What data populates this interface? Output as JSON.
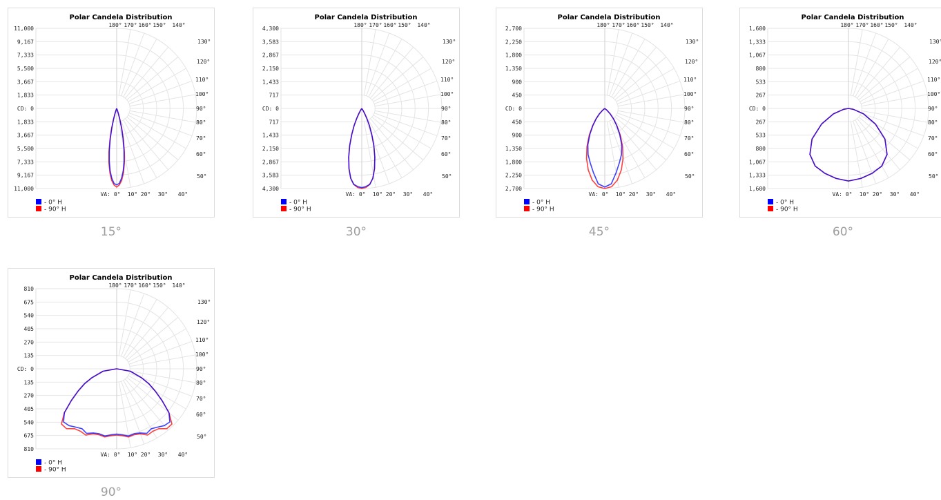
{
  "chart_data": [
    {
      "type": "line",
      "title": "Polar Candela Distribution",
      "caption": "15°",
      "ylabel": "CD: 0",
      "xlabel": "VA: 0°",
      "ylim": [
        0,
        11000
      ],
      "axis_ticks": [
        "11,000",
        "9,167",
        "7,333",
        "5,500",
        "3,667",
        "1,833",
        "CD: 0",
        "1,833",
        "3,667",
        "5,500",
        "7,333",
        "9,167",
        "11,000"
      ],
      "angle_labels_top": [
        "180°",
        "170°",
        "160°",
        "150°",
        "140°"
      ],
      "angle_labels_right": [
        "130°",
        "120°",
        "110°",
        "100°",
        "90°",
        "80°",
        "70°",
        "60°",
        "50°"
      ],
      "angle_labels_bottom": [
        "VA: 0°",
        "10°",
        "20°",
        "30°",
        "40°"
      ],
      "legend_position": "bottom-left",
      "series": [
        {
          "name": "- 0° H",
          "color": "#0000ff",
          "angles": [
            0,
            2,
            4,
            6,
            8,
            10,
            12,
            14,
            16,
            18,
            20,
            90,
            180
          ],
          "values": [
            10500,
            10300,
            9600,
            8600,
            7300,
            5800,
            4200,
            2700,
            1500,
            700,
            250,
            0,
            0
          ]
        },
        {
          "name": "- 90° H",
          "color": "#ff0000",
          "angles": [
            0,
            2,
            4,
            6,
            8,
            10,
            12,
            14,
            16,
            18,
            20,
            90,
            180
          ],
          "values": [
            10800,
            10500,
            9900,
            8900,
            7600,
            6100,
            4500,
            3000,
            1700,
            800,
            300,
            0,
            0
          ]
        }
      ]
    },
    {
      "type": "line",
      "title": "Polar Candela Distribution",
      "caption": "30°",
      "ylabel": "CD: 0",
      "xlabel": "VA: 0°",
      "ylim": [
        0,
        4300
      ],
      "axis_ticks": [
        "4,300",
        "3,583",
        "2,867",
        "2,150",
        "1,433",
        "717",
        "CD: 0",
        "717",
        "1,433",
        "2,150",
        "2,867",
        "3,583",
        "4,300"
      ],
      "angle_labels_top": [
        "180°",
        "170°",
        "160°",
        "150°",
        "140°"
      ],
      "angle_labels_right": [
        "130°",
        "120°",
        "110°",
        "100°",
        "90°",
        "80°",
        "70°",
        "60°",
        "50°"
      ],
      "angle_labels_bottom": [
        "VA: 0°",
        "10°",
        "20°",
        "30°",
        "40°"
      ],
      "legend_position": "bottom-left",
      "series": [
        {
          "name": "- 0° H",
          "color": "#0000ff",
          "angles": [
            0,
            3,
            6,
            9,
            12,
            15,
            18,
            21,
            24,
            27,
            30,
            33,
            90,
            180
          ],
          "values": [
            4250,
            4200,
            4100,
            3800,
            3300,
            2700,
            2100,
            1500,
            1000,
            600,
            300,
            100,
            0,
            0
          ]
        },
        {
          "name": "- 90° H",
          "color": "#ff0000",
          "angles": [
            0,
            3,
            6,
            9,
            12,
            15,
            18,
            21,
            24,
            27,
            30,
            33,
            90,
            180
          ],
          "values": [
            4300,
            4250,
            4100,
            3800,
            3300,
            2700,
            2100,
            1500,
            1000,
            600,
            300,
            100,
            0,
            0
          ]
        }
      ]
    },
    {
      "type": "line",
      "title": "Polar Candela Distribution",
      "caption": "45°",
      "ylabel": "CD: 0",
      "xlabel": "VA: 0°",
      "ylim": [
        0,
        2700
      ],
      "axis_ticks": [
        "2,700",
        "2,250",
        "1,800",
        "1,350",
        "900",
        "450",
        "CD: 0",
        "450",
        "900",
        "1,350",
        "1,800",
        "2,250",
        "2,700"
      ],
      "angle_labels_top": [
        "180°",
        "170°",
        "160°",
        "150°",
        "140°"
      ],
      "angle_labels_right": [
        "130°",
        "120°",
        "110°",
        "100°",
        "90°",
        "80°",
        "70°",
        "60°",
        "50°"
      ],
      "angle_labels_bottom": [
        "VA: 0°",
        "10°",
        "20°",
        "30°",
        "40°"
      ],
      "legend_position": "bottom-left",
      "series": [
        {
          "name": "- 0° H",
          "color": "#0000ff",
          "angles": [
            0,
            5,
            10,
            15,
            20,
            25,
            30,
            35,
            40,
            45,
            50,
            90,
            180
          ],
          "values": [
            2650,
            2550,
            2200,
            1900,
            1650,
            1350,
            1000,
            700,
            450,
            250,
            100,
            0,
            0
          ]
        },
        {
          "name": "- 90° H",
          "color": "#ff0000",
          "angles": [
            0,
            5,
            10,
            15,
            20,
            25,
            30,
            35,
            40,
            45,
            50,
            90,
            180
          ],
          "values": [
            2700,
            2650,
            2450,
            2150,
            1800,
            1420,
            1050,
            720,
            460,
            250,
            100,
            0,
            0
          ]
        }
      ]
    },
    {
      "type": "line",
      "title": "Polar Candela Distribution",
      "caption": "60°",
      "ylabel": "CD: 0",
      "xlabel": "VA: 0°",
      "ylim": [
        0,
        1600
      ],
      "axis_ticks": [
        "1,600",
        "1,333",
        "1,067",
        "800",
        "533",
        "267",
        "CD: 0",
        "267",
        "533",
        "800",
        "1,067",
        "1,333",
        "1,600"
      ],
      "angle_labels_top": [
        "180°",
        "170°",
        "160°",
        "150°",
        "140°"
      ],
      "angle_labels_right": [
        "130°",
        "120°",
        "110°",
        "100°",
        "90°",
        "80°",
        "70°",
        "60°",
        "50°"
      ],
      "angle_labels_bottom": [
        "VA: 0°",
        "10°",
        "20°",
        "30°",
        "40°"
      ],
      "legend_position": "bottom-left",
      "series": [
        {
          "name": "- 0° H",
          "color": "#0000ff",
          "angles": [
            0,
            10,
            20,
            30,
            40,
            50,
            60,
            70,
            80,
            90,
            180
          ],
          "values": [
            1450,
            1420,
            1380,
            1330,
            1200,
            950,
            620,
            320,
            100,
            0,
            0
          ]
        },
        {
          "name": "- 90° H",
          "color": "#ff0000",
          "angles": [
            0,
            10,
            20,
            30,
            40,
            50,
            60,
            70,
            80,
            90,
            180
          ],
          "values": [
            1450,
            1420,
            1380,
            1330,
            1200,
            950,
            620,
            320,
            100,
            0,
            0
          ]
        }
      ]
    },
    {
      "type": "line",
      "title": "Polar Candela Distribution",
      "caption": "90°",
      "ylabel": "CD: 0",
      "xlabel": "VA: 0°",
      "ylim": [
        0,
        810
      ],
      "axis_ticks": [
        "810",
        "675",
        "540",
        "405",
        "270",
        "135",
        "CD: 0",
        "135",
        "270",
        "405",
        "540",
        "675",
        "810"
      ],
      "angle_labels_top": [
        "180°",
        "170°",
        "160°",
        "150°",
        "140°"
      ],
      "angle_labels_right": [
        "130°",
        "120°",
        "110°",
        "100°",
        "90°",
        "80°",
        "70°",
        "60°",
        "50°"
      ],
      "angle_labels_bottom": [
        "VA: 0°",
        "10°",
        "20°",
        "30°",
        "40°"
      ],
      "legend_position": "bottom-left",
      "series": [
        {
          "name": "- 0° H",
          "color": "#0000ff",
          "angles": [
            0,
            5,
            10,
            15,
            20,
            25,
            30,
            35,
            40,
            45,
            50,
            55,
            60,
            65,
            70,
            80,
            90,
            180
          ],
          "values": [
            660,
            670,
            690,
            680,
            690,
            720,
            700,
            720,
            750,
            760,
            690,
            560,
            450,
            360,
            270,
            140,
            0,
            0
          ]
        },
        {
          "name": "- 90° H",
          "color": "#ff0000",
          "angles": [
            0,
            5,
            10,
            15,
            20,
            25,
            30,
            35,
            40,
            45,
            50,
            55,
            60,
            65,
            70,
            80,
            90,
            180
          ],
          "values": [
            670,
            680,
            700,
            690,
            700,
            740,
            730,
            740,
            790,
            790,
            690,
            560,
            450,
            360,
            270,
            140,
            0,
            0
          ]
        }
      ]
    }
  ]
}
